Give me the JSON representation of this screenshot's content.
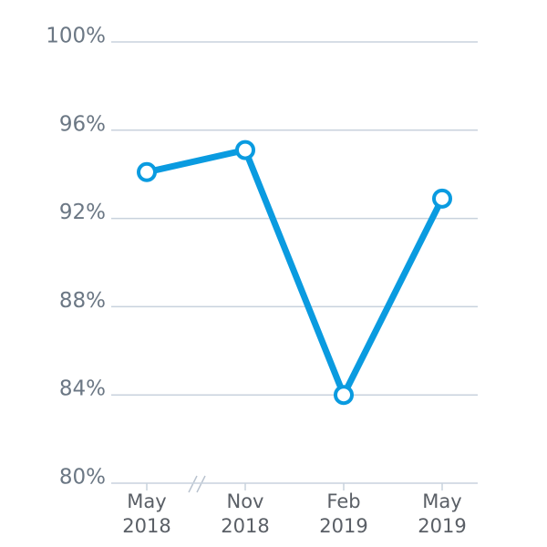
{
  "chart_data": {
    "type": "line",
    "categories": [
      "May 2018",
      "Nov 2018",
      "Feb 2019",
      "May 2019"
    ],
    "values": [
      94.1,
      95.1,
      84.0,
      92.9
    ],
    "color": "#0a9be0",
    "ylim": [
      80,
      100
    ],
    "yticks": [
      {
        "value": 80,
        "label": "80%"
      },
      {
        "value": 84,
        "label": "84%"
      },
      {
        "value": 88,
        "label": "88%"
      },
      {
        "value": 92,
        "label": "92%"
      },
      {
        "value": 96,
        "label": "96%"
      },
      {
        "value": 100,
        "label": "100%"
      }
    ],
    "grid": true
  }
}
